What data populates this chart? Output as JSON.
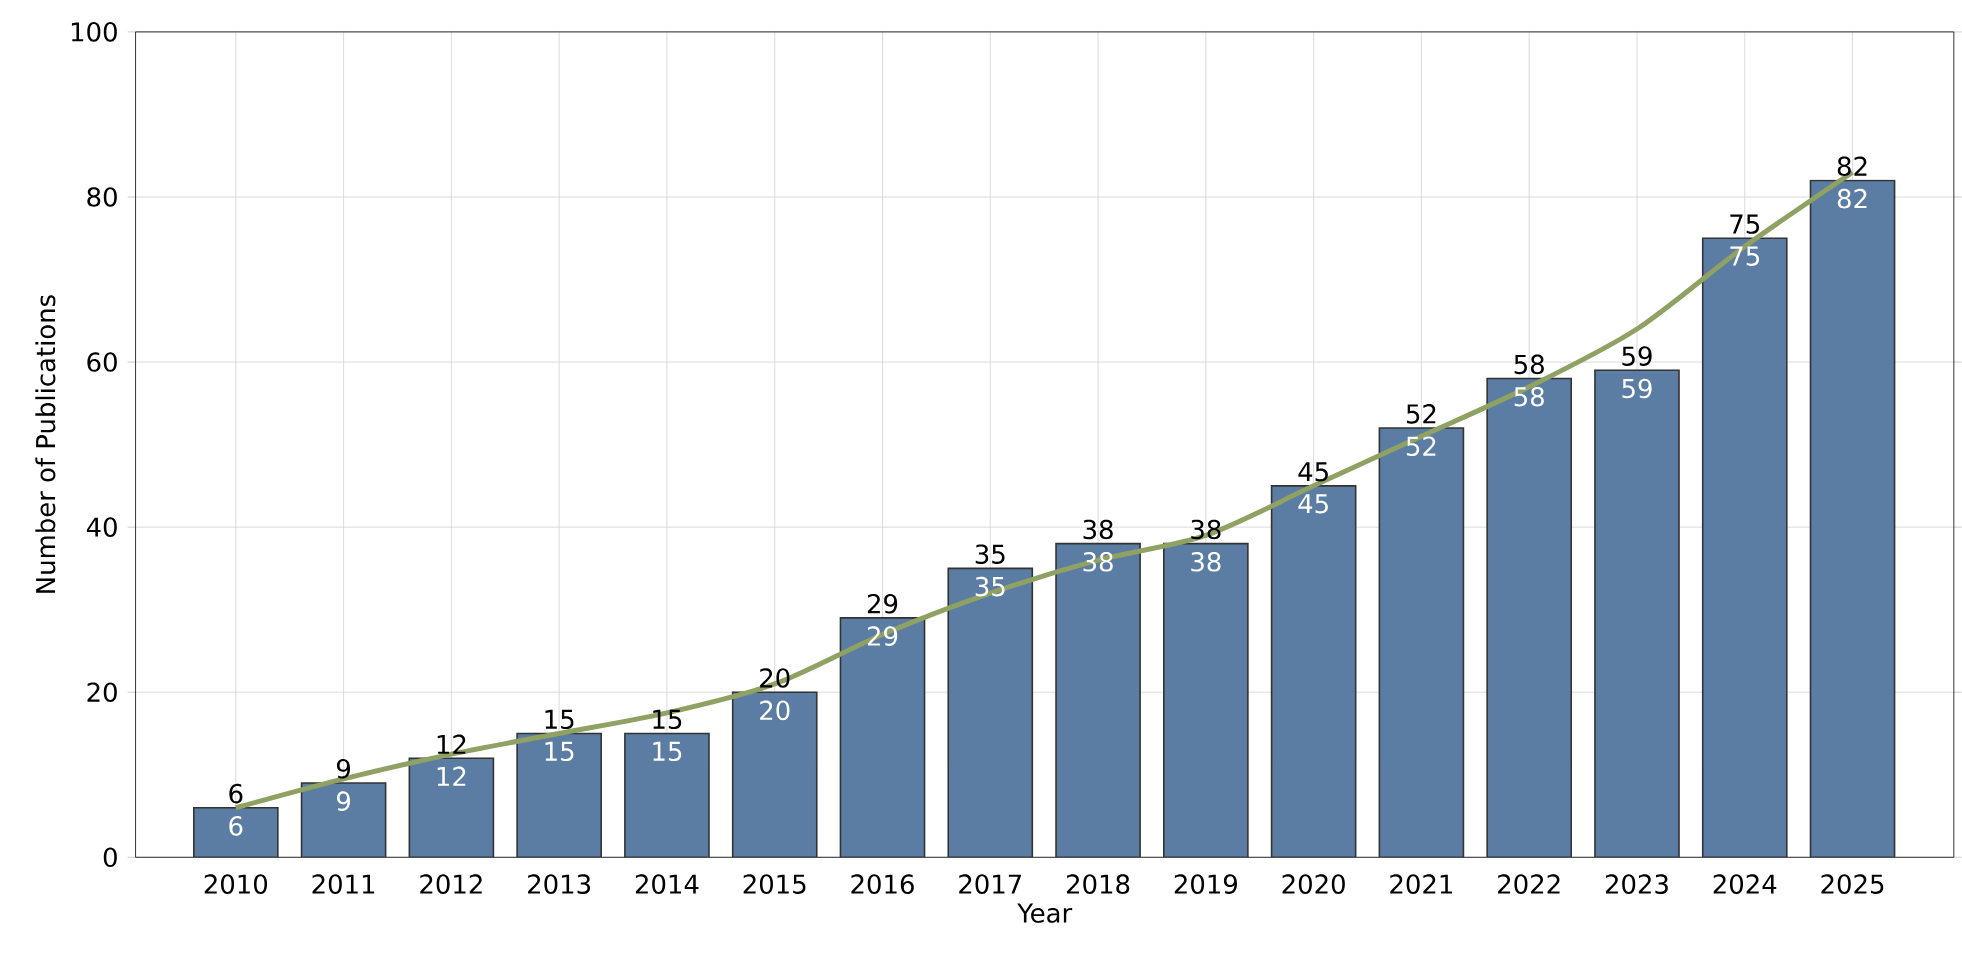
{
  "chart_data": {
    "type": "bar",
    "xlabel": "Year",
    "ylabel": "Number of Publications",
    "categories": [
      "2010",
      "2011",
      "2012",
      "2013",
      "2014",
      "2015",
      "2016",
      "2017",
      "2018",
      "2019",
      "2020",
      "2021",
      "2022",
      "2023",
      "2024",
      "2025"
    ],
    "series": [
      {
        "color": "#5b7ca3",
        "values": [
          6,
          9,
          12,
          15,
          15,
          20,
          29,
          35,
          38,
          38,
          45,
          52,
          58,
          59,
          75,
          82
        ],
        "value_labels": [
          "6",
          "9",
          "12",
          "15",
          "15",
          "20",
          "29",
          "35",
          "38",
          "38",
          "45",
          "52",
          "58",
          "59",
          "75",
          "82"
        ]
      },
      {
        "type": "line",
        "color": "#8fa163",
        "values": [
          6,
          9.5,
          12.5,
          15,
          17.5,
          21,
          27,
          32,
          36,
          39,
          45,
          51,
          57,
          64,
          74,
          83
        ]
      }
    ],
    "ylim": [
      0,
      100
    ],
    "yticks": [
      0,
      20,
      40,
      60,
      80,
      100
    ],
    "grid": true,
    "annotations": [
      {
        "text": "6",
        "x": "2010",
        "y": 6
      },
      {
        "text": "9",
        "x": "2011",
        "y": 9
      },
      {
        "text": "12",
        "x": "2012",
        "y": 12
      },
      {
        "text": "15",
        "x": "2013",
        "y": 15
      },
      {
        "text": "15",
        "x": "2014",
        "y": 15
      },
      {
        "text": "20",
        "x": "2015",
        "y": 20
      },
      {
        "text": "29",
        "x": "2016",
        "y": 29
      },
      {
        "text": "35",
        "x": "2017",
        "y": 35
      },
      {
        "text": "38",
        "x": "2018",
        "y": 38
      },
      {
        "text": "38",
        "x": "2019",
        "y": 38
      },
      {
        "text": "45",
        "x": "2020",
        "y": 45
      },
      {
        "text": "52",
        "x": "2021",
        "y": 52
      },
      {
        "text": "58",
        "x": "2022",
        "y": 58
      },
      {
        "text": "59",
        "x": "2023",
        "y": 59
      },
      {
        "text": "75",
        "x": "2024",
        "y": 75
      },
      {
        "text": "82",
        "x": "2025",
        "y": 82
      }
    ]
  }
}
